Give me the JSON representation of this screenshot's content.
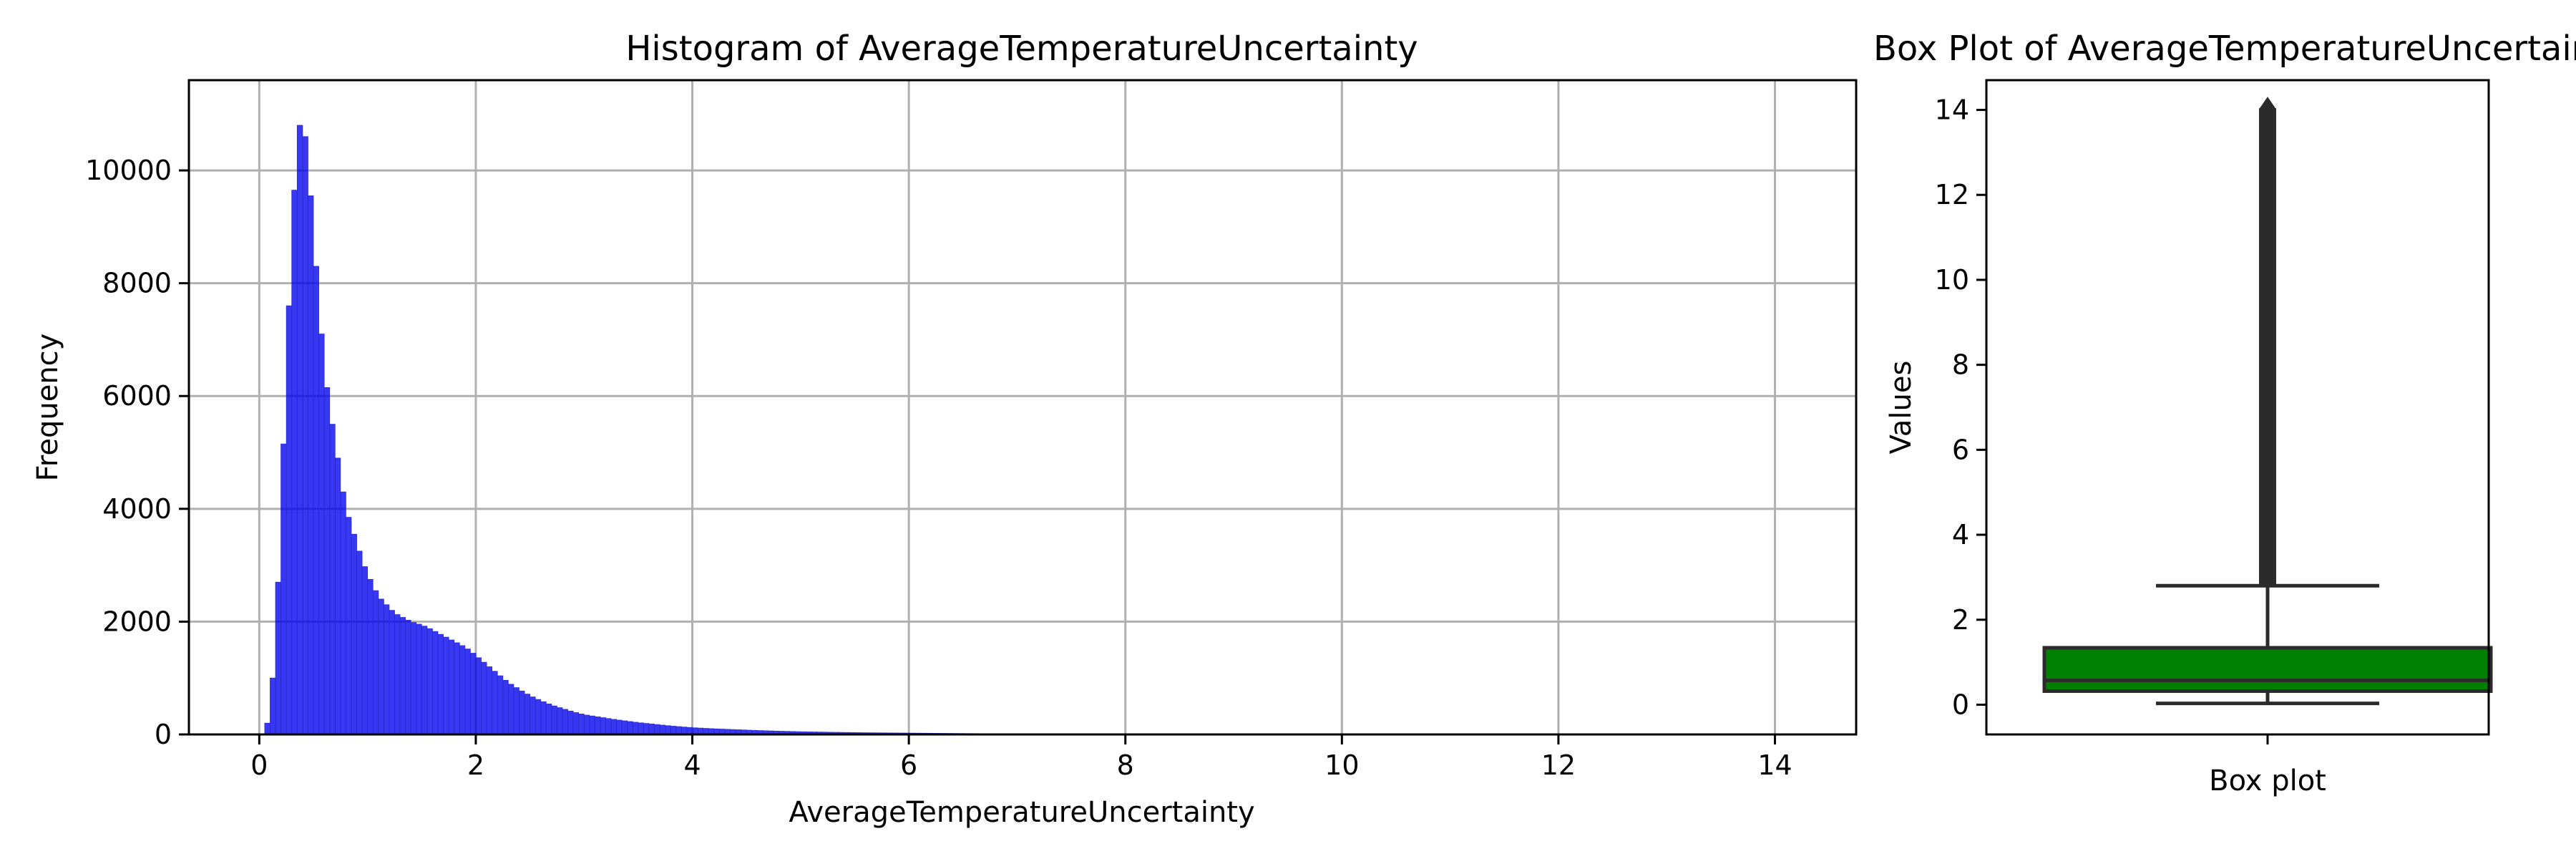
{
  "chart_data": [
    {
      "type": "bar",
      "title": "Histogram of AverageTemperatureUncertainty",
      "xlabel": "AverageTemperatureUncertainty",
      "ylabel": "Frequency",
      "xlim": [
        -0.65,
        14.75
      ],
      "ylim": [
        0,
        11600
      ],
      "xticks": [
        0,
        2,
        4,
        6,
        8,
        10,
        12,
        14
      ],
      "yticks": [
        0,
        2000,
        4000,
        6000,
        8000,
        10000
      ],
      "grid": true,
      "bar_color": "#0000ee",
      "bin_width": 0.05,
      "bins": [
        [
          0.05,
          0
        ],
        [
          0.1,
          400
        ],
        [
          0.15,
          1600
        ],
        [
          0.2,
          3800
        ],
        [
          0.25,
          6500
        ],
        [
          0.3,
          8700
        ],
        [
          0.35,
          10600
        ],
        [
          0.4,
          11000
        ],
        [
          0.45,
          10200
        ],
        [
          0.5,
          8900
        ],
        [
          0.55,
          7700
        ],
        [
          0.6,
          6500
        ],
        [
          0.65,
          5800
        ],
        [
          0.7,
          5200
        ],
        [
          0.75,
          4600
        ],
        [
          0.8,
          4000
        ],
        [
          0.85,
          3700
        ],
        [
          0.9,
          3400
        ],
        [
          0.95,
          3100
        ],
        [
          1.0,
          2850
        ],
        [
          1.05,
          2650
        ],
        [
          1.1,
          2450
        ],
        [
          1.15,
          2350
        ],
        [
          1.2,
          2250
        ],
        [
          1.25,
          2150
        ],
        [
          1.3,
          2100
        ],
        [
          1.35,
          2050
        ],
        [
          1.4,
          2000
        ],
        [
          1.45,
          1970
        ],
        [
          1.5,
          1940
        ],
        [
          1.55,
          1900
        ],
        [
          1.6,
          1850
        ],
        [
          1.65,
          1800
        ],
        [
          1.7,
          1750
        ],
        [
          1.75,
          1700
        ],
        [
          1.8,
          1650
        ],
        [
          1.85,
          1600
        ],
        [
          1.9,
          1550
        ],
        [
          1.95,
          1480
        ],
        [
          2.0,
          1400
        ],
        [
          2.05,
          1320
        ],
        [
          2.1,
          1240
        ],
        [
          2.15,
          1160
        ],
        [
          2.2,
          1080
        ],
        [
          2.25,
          1000
        ],
        [
          2.3,
          920
        ],
        [
          2.35,
          860
        ],
        [
          2.4,
          800
        ],
        [
          2.45,
          740
        ],
        [
          2.5,
          690
        ],
        [
          2.55,
          640
        ],
        [
          2.6,
          600
        ],
        [
          2.65,
          560
        ],
        [
          2.7,
          520
        ],
        [
          2.75,
          490
        ],
        [
          2.8,
          460
        ],
        [
          2.85,
          430
        ],
        [
          2.9,
          400
        ],
        [
          2.95,
          375
        ],
        [
          3.0,
          350
        ],
        [
          3.1,
          320
        ],
        [
          3.2,
          290
        ],
        [
          3.3,
          260
        ],
        [
          3.4,
          235
        ],
        [
          3.5,
          210
        ],
        [
          3.6,
          190
        ],
        [
          3.7,
          170
        ],
        [
          3.8,
          150
        ],
        [
          3.9,
          135
        ],
        [
          4.0,
          120
        ],
        [
          4.2,
          100
        ],
        [
          4.4,
          85
        ],
        [
          4.6,
          70
        ],
        [
          4.8,
          58
        ],
        [
          5.0,
          48
        ],
        [
          5.3,
          38
        ],
        [
          5.6,
          30
        ],
        [
          6.0,
          24
        ],
        [
          6.5,
          16
        ],
        [
          7.0,
          10
        ],
        [
          8.0,
          6
        ],
        [
          9.0,
          4
        ],
        [
          10.0,
          3
        ],
        [
          11.0,
          2
        ],
        [
          12.0,
          1
        ],
        [
          13.0,
          1
        ],
        [
          14.0,
          0
        ]
      ]
    },
    {
      "type": "box",
      "title": "Box Plot of AverageTemperatureUncertainty",
      "xlabel": "Box plot",
      "ylabel": "Values",
      "ylim": [
        -0.7,
        14.7
      ],
      "yticks": [
        0,
        2,
        4,
        6,
        8,
        10,
        12,
        14
      ],
      "box_color": "#008000",
      "whisker_low": 0.03,
      "q1": 0.32,
      "median": 0.57,
      "q3": 1.34,
      "whisker_high": 2.8,
      "outlier_min": 2.8,
      "outlier_max": 14.04
    }
  ]
}
